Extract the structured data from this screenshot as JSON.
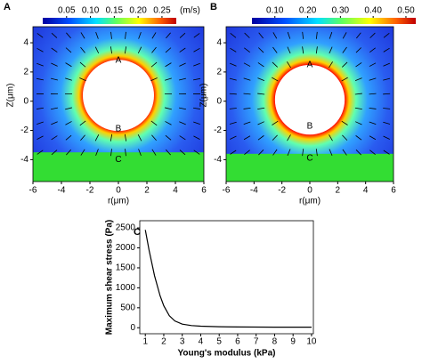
{
  "chart_data": [
    {
      "type": "field",
      "panel_label": "A",
      "colorbar_unit": "(m/s)",
      "colorbar_lim": [
        0,
        0.28
      ],
      "colorbar_ticks": [
        {
          "value": 0.05,
          "label": "0.05"
        },
        {
          "value": 0.1,
          "label": "0.10"
        },
        {
          "value": 0.15,
          "label": "0.15"
        },
        {
          "value": 0.2,
          "label": "0.20"
        },
        {
          "value": 0.25,
          "label": "0.25"
        }
      ],
      "xlabel": "r(μm)",
      "ylabel": "Z(μm)",
      "xlim": [
        -6,
        6
      ],
      "ylim": [
        -5.5,
        5.1
      ],
      "xticks": [
        -6,
        -4,
        -2,
        0,
        2,
        4,
        6
      ],
      "yticks": [
        4,
        2,
        0,
        -2,
        -4
      ],
      "annotations": [
        "A",
        "B",
        "C"
      ]
    },
    {
      "type": "field",
      "panel_label": "B",
      "colorbar_lim": [
        0.03,
        0.53
      ],
      "colorbar_ticks": [
        {
          "value": 0.1,
          "label": "0.10"
        },
        {
          "value": 0.2,
          "label": "0.20"
        },
        {
          "value": 0.3,
          "label": "0.30"
        },
        {
          "value": 0.4,
          "label": "0.40"
        },
        {
          "value": 0.5,
          "label": "0.50"
        }
      ],
      "xlabel": "r(μm)",
      "ylabel": "Z(μm)",
      "xlim": [
        -6,
        6
      ],
      "ylim": [
        -5.5,
        5.1
      ],
      "xticks": [
        -6,
        -4,
        -2,
        0,
        2,
        4,
        6
      ],
      "yticks": [
        4,
        2,
        0,
        -2,
        -4
      ],
      "annotations": [
        "A",
        "B",
        "C"
      ]
    },
    {
      "type": "line",
      "panel_label": "C",
      "xlabel": "Young's modulus (kPa)",
      "ylabel": "Maximum shear stress (Pa)",
      "x": [
        1,
        1.2,
        1.5,
        1.8,
        2,
        2.3,
        2.6,
        3,
        3.5,
        4,
        5,
        6,
        8,
        10
      ],
      "values": [
        2450,
        1950,
        1300,
        800,
        550,
        300,
        170,
        90,
        55,
        40,
        25,
        20,
        15,
        15
      ],
      "color": "#000000",
      "xlim": [
        0.7,
        10.1
      ],
      "ylim": [
        -150,
        2680
      ],
      "xticks": [
        1,
        2,
        3,
        4,
        5,
        6,
        7,
        8,
        9,
        10
      ],
      "yticks": [
        0,
        500,
        1000,
        1500,
        2000,
        2500
      ]
    }
  ]
}
